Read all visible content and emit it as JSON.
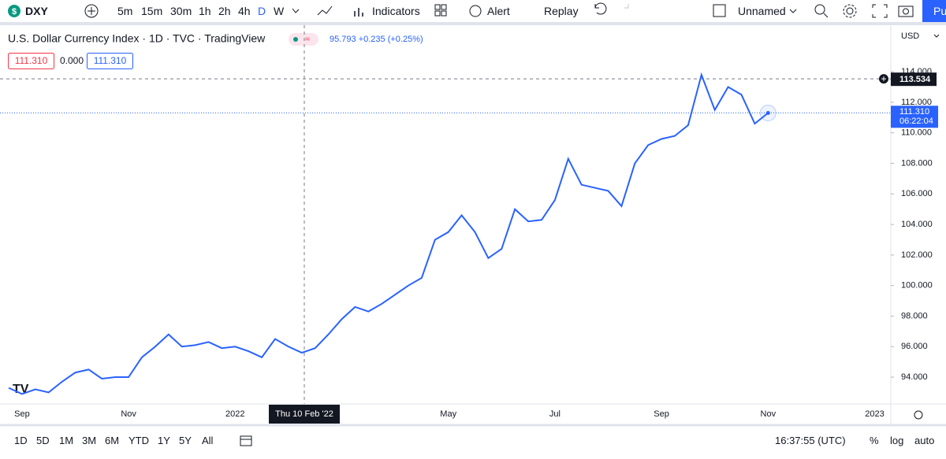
{
  "toolbar": {
    "symbol": "DXY",
    "intervals": [
      "5m",
      "15m",
      "30m",
      "1h",
      "2h",
      "4h",
      "D",
      "W"
    ],
    "indicators": "Indicators",
    "alert": "Alert",
    "replay": "Replay",
    "layout": "Unnamed",
    "publish": "Pu"
  },
  "legend": {
    "title": "U.S. Dollar Currency Index · 1D · TVC · TradingView",
    "quote": "95.793 +0.235 (+0.25%)",
    "bid": "111.310",
    "spread": "0.000",
    "ask": "111.310"
  },
  "currency": "USD",
  "bottom_bar": {
    "ranges": [
      "1D",
      "5D",
      "1M",
      "3M",
      "6M",
      "YTD",
      "1Y",
      "5Y",
      "All"
    ],
    "clock": "16:37:55 (UTC)",
    "percent": "%",
    "log": "log",
    "auto": "auto"
  },
  "chart_data": {
    "type": "line",
    "color": "#2962ff",
    "categories": [
      null,
      "Sep",
      null,
      null,
      null,
      null,
      null,
      null,
      null,
      "Nov",
      null,
      null,
      null,
      null,
      null,
      null,
      null,
      "2022",
      null,
      null,
      null,
      null,
      null,
      null,
      null,
      null,
      null,
      null,
      null,
      null,
      null,
      null,
      null,
      "May",
      null,
      null,
      null,
      null,
      null,
      null,
      null,
      "Jul",
      null,
      null,
      null,
      null,
      null,
      null,
      null,
      "Sep",
      null,
      null,
      null,
      null,
      null,
      null,
      null,
      "Nov",
      null,
      null,
      null,
      null,
      null,
      null,
      null,
      "2023"
    ],
    "values": [
      93.3,
      92.9,
      93.2,
      93.0,
      93.7,
      94.3,
      94.5,
      93.9,
      94.0,
      94.0,
      95.3,
      96.0,
      96.8,
      96.0,
      96.1,
      96.3,
      95.9,
      96.0,
      95.7,
      95.3,
      96.5,
      96.0,
      95.6,
      95.9,
      96.8,
      97.8,
      98.6,
      98.3,
      98.8,
      99.4,
      100.0,
      100.5,
      103.0,
      103.5,
      104.6,
      103.5,
      101.8,
      102.4,
      105.0,
      104.2,
      104.3,
      105.6,
      108.3,
      106.6,
      106.4,
      106.2,
      105.2,
      108.0,
      109.2,
      109.6,
      109.8,
      110.5,
      113.8,
      111.5,
      113.0,
      112.5,
      110.6,
      111.3,
      null,
      null,
      null,
      null,
      null,
      null,
      null,
      null
    ],
    "ylim": [
      92.25,
      116.74
    ],
    "yticks": [
      {
        "value": 94,
        "label": "94.000"
      },
      {
        "value": 96,
        "label": "96.000"
      },
      {
        "value": 98,
        "label": "98.000"
      },
      {
        "value": 100,
        "label": "100.000"
      },
      {
        "value": 102,
        "label": "102.000"
      },
      {
        "value": 104,
        "label": "104.000"
      },
      {
        "value": 106,
        "label": "106.000"
      },
      {
        "value": 108,
        "label": "108.000"
      },
      {
        "value": 110,
        "label": "110.000"
      },
      {
        "value": 112,
        "label": "112.000"
      },
      {
        "value": 114,
        "label": "114.000"
      }
    ],
    "crosshair": {
      "date": "Thu 10 Feb '22",
      "price": 113.534,
      "price_label": "113.534"
    },
    "last_price": {
      "value": 111.31,
      "label": "111.310",
      "countdown": "06:22:04"
    }
  }
}
